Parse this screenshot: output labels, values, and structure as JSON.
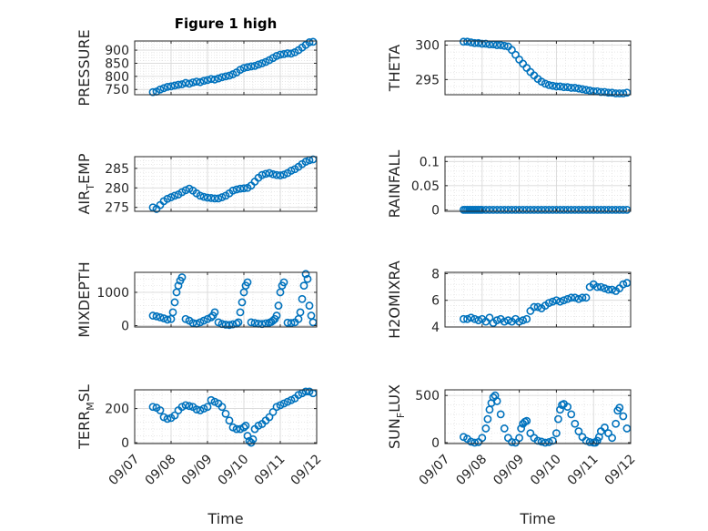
{
  "figure_title": "Figure 1 high",
  "x_axis": {
    "label": "Time",
    "ticks": [
      "09/07",
      "09/08",
      "09/09",
      "09/10",
      "09/11",
      "09/12"
    ]
  },
  "colors": {
    "marker": "#0072bd",
    "axis": "#262626",
    "grid": "#d9d9d9",
    "background": "#ffffff"
  },
  "chart_data": [
    {
      "type": "scatter",
      "ylabel": "PRESSURE",
      "title": "Figure 1 high",
      "xlim": [
        0,
        5
      ],
      "ylim": [
        730,
        935
      ],
      "yticks": [
        750,
        800,
        850,
        900
      ],
      "x": [
        0.5,
        0.6,
        0.7,
        0.8,
        0.9,
        1.0,
        1.1,
        1.2,
        1.3,
        1.4,
        1.5,
        1.6,
        1.7,
        1.8,
        1.9,
        2.0,
        2.1,
        2.2,
        2.3,
        2.4,
        2.5,
        2.6,
        2.7,
        2.8,
        2.9,
        3.0,
        3.1,
        3.2,
        3.3,
        3.4,
        3.5,
        3.6,
        3.7,
        3.8,
        3.9,
        4.0,
        4.1,
        4.2,
        4.3,
        4.4,
        4.5,
        4.6,
        4.7,
        4.8,
        4.9
      ],
      "y": [
        740,
        742,
        750,
        755,
        760,
        762,
        765,
        768,
        770,
        775,
        772,
        777,
        780,
        778,
        783,
        786,
        790,
        788,
        792,
        797,
        800,
        803,
        808,
        815,
        825,
        832,
        835,
        838,
        840,
        845,
        850,
        855,
        862,
        870,
        878,
        883,
        885,
        888,
        887,
        892,
        900,
        910,
        920,
        930,
        932
      ]
    },
    {
      "type": "scatter",
      "ylabel": "THETA",
      "xlim": [
        0,
        5
      ],
      "ylim": [
        292.8,
        300.6
      ],
      "yticks": [
        295,
        300
      ],
      "x": [
        0.5,
        0.6,
        0.7,
        0.8,
        0.9,
        1.0,
        1.1,
        1.2,
        1.3,
        1.4,
        1.5,
        1.6,
        1.7,
        1.8,
        1.9,
        2.0,
        2.1,
        2.2,
        2.3,
        2.4,
        2.5,
        2.6,
        2.7,
        2.8,
        2.9,
        3.0,
        3.1,
        3.2,
        3.3,
        3.4,
        3.5,
        3.6,
        3.7,
        3.8,
        3.9,
        4.0,
        4.1,
        4.2,
        4.3,
        4.4,
        4.5,
        4.6,
        4.7,
        4.8,
        4.9
      ],
      "y": [
        300.5,
        300.5,
        300.4,
        300.3,
        300.3,
        300.2,
        300.2,
        300.1,
        300.1,
        300.0,
        300.0,
        299.9,
        299.8,
        299.3,
        298.6,
        297.9,
        297.3,
        296.7,
        296.1,
        295.6,
        295.1,
        294.7,
        294.4,
        294.2,
        294.1,
        294.0,
        294.0,
        293.9,
        293.9,
        293.8,
        293.8,
        293.7,
        293.6,
        293.5,
        293.4,
        293.3,
        293.3,
        293.2,
        293.2,
        293.1,
        293.1,
        293.0,
        293.0,
        293.0,
        293.1
      ]
    },
    {
      "type": "scatter",
      "ylabel": "AIR_TEMP",
      "xlim": [
        0,
        5
      ],
      "ylim": [
        274.0,
        288.0
      ],
      "yticks": [
        275,
        280,
        285
      ],
      "x": [
        0.5,
        0.6,
        0.7,
        0.8,
        0.9,
        1.0,
        1.1,
        1.2,
        1.3,
        1.4,
        1.5,
        1.6,
        1.7,
        1.8,
        1.9,
        2.0,
        2.1,
        2.2,
        2.3,
        2.4,
        2.5,
        2.6,
        2.7,
        2.8,
        2.9,
        3.0,
        3.1,
        3.2,
        3.3,
        3.4,
        3.5,
        3.6,
        3.7,
        3.8,
        3.9,
        4.0,
        4.1,
        4.2,
        4.3,
        4.4,
        4.5,
        4.6,
        4.7,
        4.8,
        4.9
      ],
      "y": [
        275.0,
        274.6,
        275.6,
        276.6,
        277.2,
        277.6,
        278.0,
        278.3,
        278.9,
        279.4,
        279.8,
        279.3,
        278.6,
        278.0,
        277.7,
        277.5,
        277.4,
        277.3,
        277.3,
        277.6,
        278.0,
        278.6,
        279.3,
        279.6,
        279.8,
        279.9,
        280.0,
        280.6,
        281.6,
        282.6,
        283.3,
        283.6,
        283.8,
        283.5,
        283.3,
        283.2,
        283.4,
        283.8,
        284.4,
        284.8,
        285.4,
        286.1,
        286.7,
        287.1,
        287.3
      ]
    },
    {
      "type": "scatter",
      "ylabel": "RAINFALL",
      "xlim": [
        0,
        5
      ],
      "ylim": [
        -0.003,
        0.11
      ],
      "yticks": [
        0,
        0.05,
        0.1
      ],
      "ytick_labels": [
        "0",
        "0.05",
        "0.1"
      ],
      "x": [
        0.5,
        0.55,
        0.6,
        0.65,
        0.7,
        0.75,
        0.8,
        0.85,
        0.9,
        0.95,
        1.0,
        1.1,
        1.2,
        1.3,
        1.4,
        1.5,
        1.6,
        1.7,
        1.8,
        1.9,
        2.0,
        2.1,
        2.2,
        2.3,
        2.4,
        2.5,
        2.6,
        2.7,
        2.8,
        2.9,
        3.0,
        3.1,
        3.2,
        3.3,
        3.4,
        3.5,
        3.6,
        3.7,
        3.8,
        3.9,
        4.0,
        4.1,
        4.2,
        4.3,
        4.4,
        4.5,
        4.6,
        4.7,
        4.8,
        4.9
      ],
      "y": [
        0,
        0,
        0,
        0,
        0,
        0,
        0,
        0,
        0,
        0,
        0,
        0,
        0,
        0,
        0,
        0,
        0,
        0,
        0,
        0,
        0,
        0,
        0,
        0,
        0,
        0,
        0,
        0,
        0,
        0,
        0,
        0,
        0,
        0,
        0,
        0,
        0,
        0,
        0,
        0,
        0,
        0,
        0,
        0,
        0,
        0,
        0,
        0,
        0,
        0
      ]
    },
    {
      "type": "scatter",
      "ylabel": "MIXDEPTH",
      "xlim": [
        0,
        5
      ],
      "ylim": [
        -40,
        1600
      ],
      "yticks": [
        0,
        1000
      ],
      "x": [
        0.5,
        0.6,
        0.7,
        0.8,
        0.9,
        1.0,
        1.05,
        1.1,
        1.15,
        1.2,
        1.25,
        1.3,
        1.4,
        1.5,
        1.6,
        1.7,
        1.8,
        1.9,
        2.0,
        2.1,
        2.15,
        2.2,
        2.3,
        2.4,
        2.5,
        2.6,
        2.7,
        2.8,
        2.85,
        2.9,
        2.95,
        3.0,
        3.05,
        3.1,
        3.2,
        3.3,
        3.4,
        3.5,
        3.6,
        3.7,
        3.75,
        3.8,
        3.85,
        3.9,
        3.95,
        4.0,
        4.05,
        4.1,
        4.2,
        4.3,
        4.4,
        4.5,
        4.55,
        4.6,
        4.65,
        4.7,
        4.75,
        4.8,
        4.85,
        4.9
      ],
      "y": [
        300,
        280,
        250,
        220,
        180,
        200,
        400,
        700,
        1000,
        1200,
        1350,
        1450,
        200,
        150,
        80,
        60,
        100,
        150,
        200,
        250,
        300,
        400,
        100,
        50,
        30,
        20,
        40,
        60,
        100,
        400,
        700,
        1000,
        1200,
        1300,
        100,
        80,
        60,
        50,
        70,
        90,
        110,
        150,
        200,
        300,
        600,
        1000,
        1200,
        1300,
        90,
        80,
        100,
        200,
        400,
        800,
        1200,
        1550,
        1400,
        600,
        300,
        100
      ]
    },
    {
      "type": "scatter",
      "ylabel": "H2OMIXRA",
      "xlim": [
        0,
        5
      ],
      "ylim": [
        4.0,
        8.1
      ],
      "yticks": [
        4,
        6,
        8
      ],
      "x": [
        0.5,
        0.6,
        0.7,
        0.8,
        0.9,
        1.0,
        1.1,
        1.2,
        1.3,
        1.4,
        1.5,
        1.6,
        1.7,
        1.8,
        1.9,
        2.0,
        2.1,
        2.2,
        2.3,
        2.4,
        2.5,
        2.6,
        2.7,
        2.8,
        2.9,
        3.0,
        3.1,
        3.2,
        3.3,
        3.4,
        3.5,
        3.6,
        3.7,
        3.8,
        3.9,
        4.0,
        4.1,
        4.2,
        4.3,
        4.4,
        4.5,
        4.6,
        4.7,
        4.8,
        4.9
      ],
      "y": [
        4.6,
        4.6,
        4.7,
        4.6,
        4.5,
        4.6,
        4.4,
        4.7,
        4.3,
        4.5,
        4.6,
        4.4,
        4.5,
        4.4,
        4.6,
        4.4,
        4.5,
        4.6,
        5.2,
        5.5,
        5.5,
        5.4,
        5.6,
        5.8,
        5.9,
        6.0,
        5.9,
        6.0,
        6.1,
        6.2,
        6.2,
        6.1,
        6.2,
        6.2,
        7.0,
        7.2,
        7.0,
        7.0,
        6.9,
        6.8,
        6.8,
        6.7,
        6.9,
        7.2,
        7.3
      ]
    },
    {
      "type": "scatter",
      "ylabel": "TERR_MSL",
      "xlim": [
        0,
        5
      ],
      "ylim": [
        -5,
        310
      ],
      "yticks": [
        0,
        200
      ],
      "x": [
        0.5,
        0.6,
        0.7,
        0.8,
        0.9,
        1.0,
        1.1,
        1.2,
        1.3,
        1.4,
        1.5,
        1.6,
        1.7,
        1.8,
        1.9,
        2.0,
        2.1,
        2.2,
        2.3,
        2.4,
        2.5,
        2.6,
        2.7,
        2.8,
        2.9,
        3.0,
        3.05,
        3.1,
        3.15,
        3.2,
        3.25,
        3.3,
        3.4,
        3.5,
        3.6,
        3.7,
        3.8,
        3.9,
        4.0,
        4.1,
        4.2,
        4.3,
        4.4,
        4.5,
        4.6,
        4.7,
        4.8,
        4.9
      ],
      "y": [
        210,
        205,
        190,
        150,
        140,
        145,
        160,
        190,
        210,
        220,
        215,
        210,
        195,
        190,
        200,
        210,
        250,
        240,
        230,
        210,
        170,
        130,
        90,
        80,
        80,
        90,
        100,
        40,
        10,
        0,
        20,
        80,
        100,
        110,
        130,
        150,
        180,
        210,
        220,
        230,
        240,
        250,
        260,
        280,
        290,
        300,
        300,
        290
      ]
    },
    {
      "type": "scatter",
      "ylabel": "SUN_FLUX",
      "xlim": [
        0,
        5
      ],
      "ylim": [
        -10,
        560
      ],
      "yticks": [
        0,
        500
      ],
      "x": [
        0.5,
        0.6,
        0.7,
        0.8,
        0.9,
        1.0,
        1.1,
        1.15,
        1.2,
        1.25,
        1.3,
        1.35,
        1.4,
        1.5,
        1.6,
        1.7,
        1.8,
        1.9,
        2.0,
        2.05,
        2.1,
        2.15,
        2.2,
        2.3,
        2.4,
        2.5,
        2.6,
        2.7,
        2.8,
        2.9,
        3.0,
        3.05,
        3.1,
        3.15,
        3.2,
        3.3,
        3.4,
        3.5,
        3.6,
        3.7,
        3.8,
        3.9,
        4.0,
        4.05,
        4.1,
        4.15,
        4.2,
        4.3,
        4.4,
        4.5,
        4.6,
        4.65,
        4.7,
        4.8,
        4.9
      ],
      "y": [
        60,
        40,
        10,
        0,
        5,
        50,
        150,
        250,
        350,
        420,
        480,
        500,
        440,
        300,
        150,
        50,
        5,
        0,
        50,
        150,
        200,
        220,
        230,
        100,
        50,
        20,
        10,
        0,
        5,
        20,
        100,
        250,
        350,
        400,
        410,
        380,
        300,
        200,
        120,
        60,
        20,
        5,
        0,
        0,
        20,
        60,
        120,
        160,
        100,
        50,
        200,
        340,
        370,
        280,
        150
      ]
    }
  ]
}
